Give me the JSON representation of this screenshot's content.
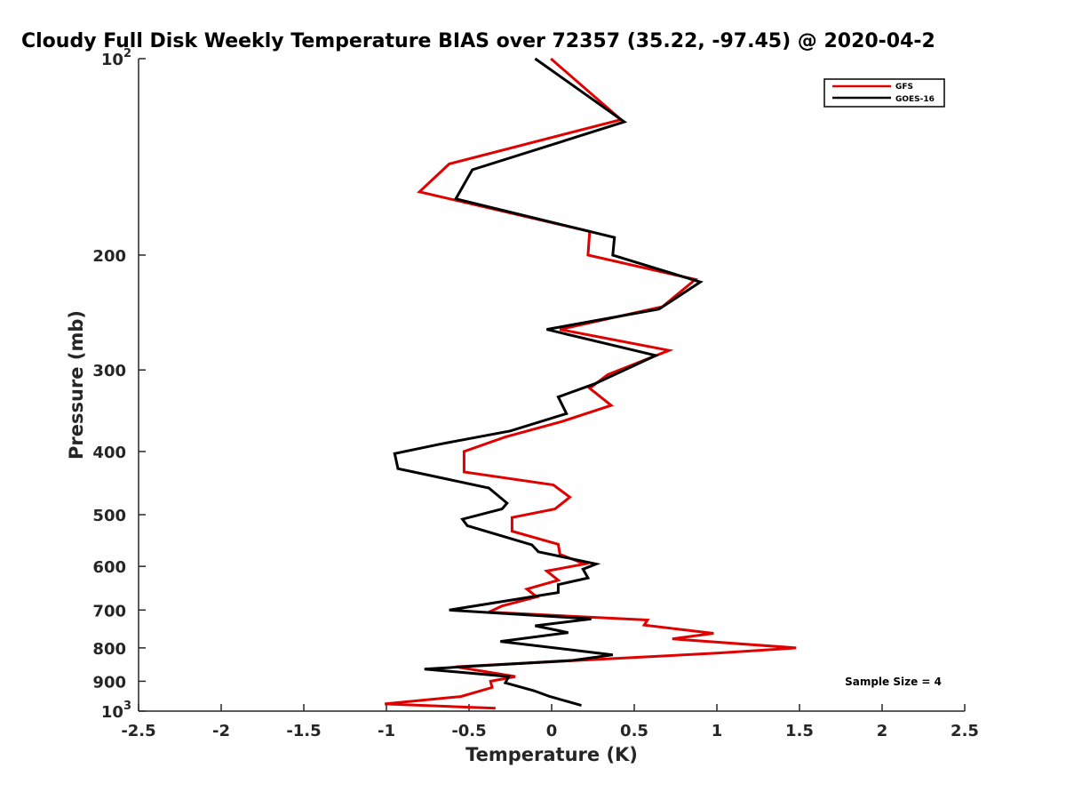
{
  "chart_data": {
    "type": "line",
    "title": "Cloudy Full Disk Weekly Temperature BIAS over 72357 (35.22, -97.45) @ 2020-04-2",
    "xlabel": "Temperature (K)",
    "ylabel": "Pressure (mb)",
    "xlim": [
      -2.5,
      2.5
    ],
    "ylim": [
      100,
      1000
    ],
    "y_scale": "log",
    "y_reversed": true,
    "grid": false,
    "legend_position": "top-right",
    "x_ticks": [
      {
        "value": -2.5,
        "label": "-2.5"
      },
      {
        "value": -2,
        "label": "-2"
      },
      {
        "value": -1.5,
        "label": "-1.5"
      },
      {
        "value": -1,
        "label": "-1"
      },
      {
        "value": -0.5,
        "label": "-0.5"
      },
      {
        "value": 0,
        "label": "0"
      },
      {
        "value": 0.5,
        "label": "0.5"
      },
      {
        "value": 1,
        "label": "1"
      },
      {
        "value": 1.5,
        "label": "1.5"
      },
      {
        "value": 2,
        "label": "2"
      },
      {
        "value": 2.5,
        "label": "2.5"
      }
    ],
    "y_ticks": [
      {
        "value": 100,
        "base": "10",
        "exp": "2"
      },
      {
        "value": 200,
        "label": "200"
      },
      {
        "value": 300,
        "label": "300"
      },
      {
        "value": 400,
        "label": "400"
      },
      {
        "value": 500,
        "label": "500"
      },
      {
        "value": 600,
        "label": "600"
      },
      {
        "value": 700,
        "label": "700"
      },
      {
        "value": 800,
        "label": "800"
      },
      {
        "value": 900,
        "label": "900"
      },
      {
        "value": 1000,
        "base": "10",
        "exp": "3"
      }
    ],
    "series": [
      {
        "name": "GFS",
        "color": "#e00000",
        "points": [
          [
            -0.005,
            100
          ],
          [
            0.42,
            124
          ],
          [
            -0.62,
            145
          ],
          [
            -0.8,
            160
          ],
          [
            0.23,
            184
          ],
          [
            0.22,
            200
          ],
          [
            0.87,
            218
          ],
          [
            0.67,
            240
          ],
          [
            0.05,
            260
          ],
          [
            0.71,
            280
          ],
          [
            0.34,
            305
          ],
          [
            0.23,
            320
          ],
          [
            0.36,
            340
          ],
          [
            0.06,
            360
          ],
          [
            -0.28,
            380
          ],
          [
            -0.53,
            400
          ],
          [
            -0.53,
            430
          ],
          [
            0.01,
            450
          ],
          [
            0.11,
            470
          ],
          [
            0.02,
            490
          ],
          [
            -0.24,
            505
          ],
          [
            -0.24,
            530
          ],
          [
            0.04,
            555
          ],
          [
            0.05,
            575
          ],
          [
            0.2,
            595
          ],
          [
            -0.03,
            610
          ],
          [
            0.04,
            630
          ],
          [
            -0.15,
            650
          ],
          [
            -0.09,
            668
          ],
          [
            -0.3,
            690
          ],
          [
            -0.38,
            705
          ],
          [
            0.58,
            725
          ],
          [
            0.56,
            738
          ],
          [
            0.98,
            760
          ],
          [
            0.73,
            775
          ],
          [
            1.48,
            800
          ],
          [
            1.0,
            815
          ],
          [
            -0.58,
            855
          ],
          [
            -0.22,
            885
          ],
          [
            -0.37,
            900
          ],
          [
            -0.36,
            920
          ],
          [
            -0.55,
            950
          ],
          [
            -1.01,
            975
          ],
          [
            -0.34,
            990
          ]
        ]
      },
      {
        "name": "GOES-16",
        "color": "#000000",
        "points": [
          [
            -0.1,
            100
          ],
          [
            0.44,
            125
          ],
          [
            -0.48,
            148
          ],
          [
            -0.58,
            164
          ],
          [
            0.38,
            188
          ],
          [
            0.37,
            200
          ],
          [
            0.9,
            220
          ],
          [
            0.65,
            242
          ],
          [
            -0.03,
            260
          ],
          [
            0.63,
            285
          ],
          [
            0.26,
            315
          ],
          [
            0.04,
            330
          ],
          [
            0.09,
            350
          ],
          [
            -0.25,
            372
          ],
          [
            -0.68,
            390
          ],
          [
            -0.95,
            403
          ],
          [
            -0.93,
            425
          ],
          [
            -0.38,
            455
          ],
          [
            -0.27,
            480
          ],
          [
            -0.3,
            490
          ],
          [
            -0.54,
            508
          ],
          [
            -0.51,
            520
          ],
          [
            -0.12,
            556
          ],
          [
            -0.08,
            570
          ],
          [
            0.27,
            595
          ],
          [
            0.19,
            606
          ],
          [
            0.22,
            625
          ],
          [
            0.04,
            640
          ],
          [
            0.04,
            658
          ],
          [
            -0.62,
            700
          ],
          [
            0.24,
            722
          ],
          [
            -0.1,
            740
          ],
          [
            0.1,
            758
          ],
          [
            -0.31,
            782
          ],
          [
            0.37,
            820
          ],
          [
            0.13,
            836
          ],
          [
            -0.77,
            862
          ],
          [
            -0.26,
            885
          ],
          [
            -0.28,
            905
          ],
          [
            -0.11,
            930
          ],
          [
            -0.01,
            950
          ],
          [
            0.18,
            980
          ]
        ]
      }
    ],
    "legend": [
      {
        "label": "GFS",
        "color": "#e00000"
      },
      {
        "label": "GOES-16",
        "color": "#000000"
      }
    ],
    "annotations": [
      {
        "text": "Sample Size = 4"
      }
    ]
  }
}
